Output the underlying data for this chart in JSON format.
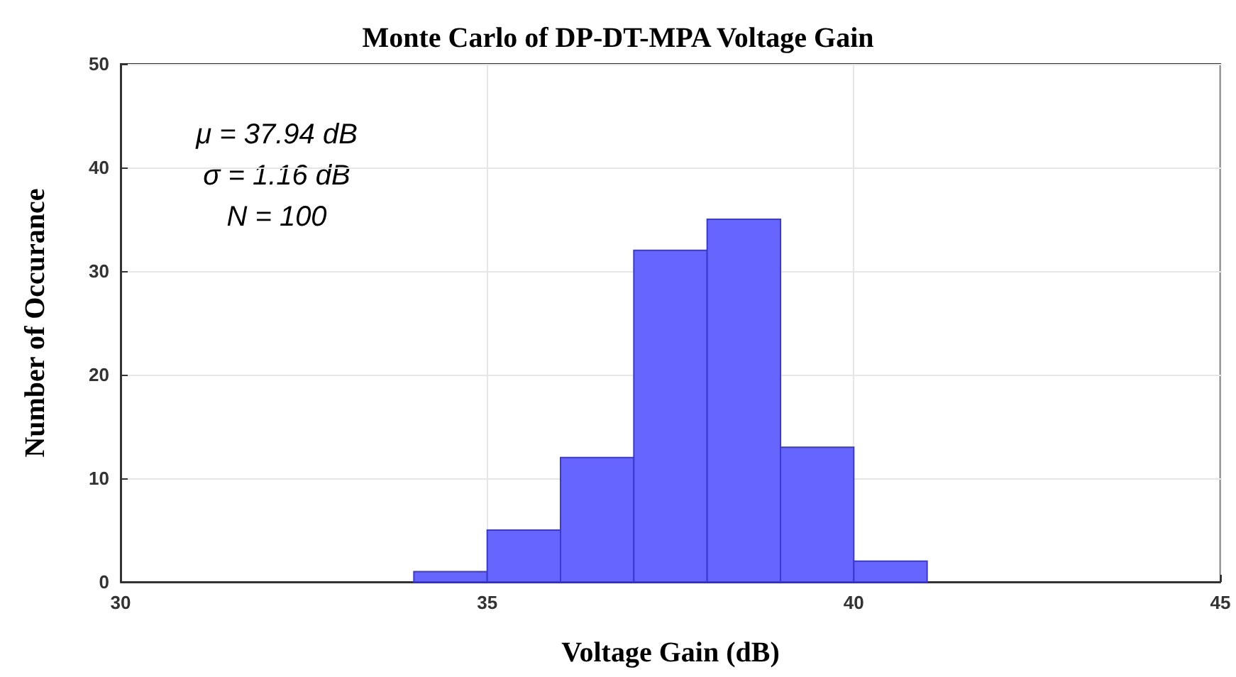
{
  "chart_data": {
    "type": "histogram",
    "title": "Monte Carlo of DP-DT-MPA Voltage Gain",
    "xlabel": "Voltage Gain (dB)",
    "ylabel": "Number of Occurance",
    "bins": [
      34,
      35,
      36,
      37,
      38,
      39,
      40,
      41
    ],
    "values": [
      1,
      5,
      12,
      32,
      35,
      13,
      2
    ],
    "color": "#6666ff",
    "xlim": [
      30,
      45
    ],
    "xticks": [
      30,
      35,
      40,
      45
    ],
    "ylim": [
      0,
      50
    ],
    "yticks": [
      0,
      10,
      20,
      30,
      40,
      50
    ],
    "grid": true,
    "annotations": [
      "μ = 37.94 dB",
      "σ = 1.16 dB",
      "N = 100"
    ]
  }
}
